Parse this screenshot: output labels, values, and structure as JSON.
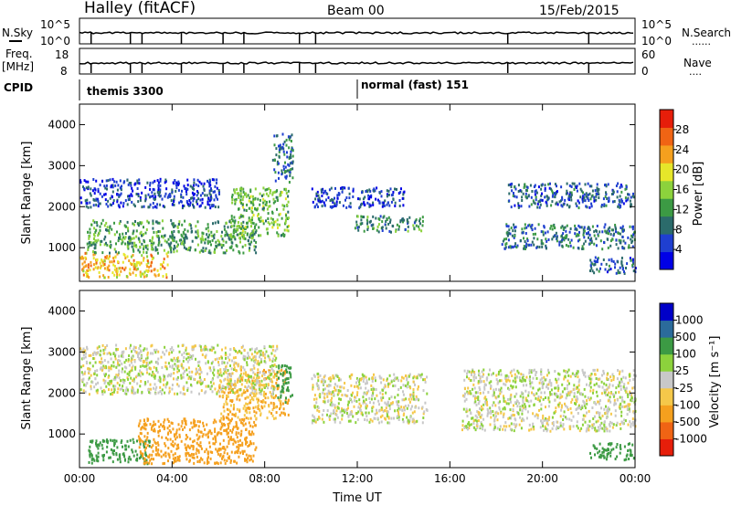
{
  "header": {
    "station": "Halley (fitACF)",
    "beam": "Beam 00",
    "date": "15/Feb/2015"
  },
  "noise_panel": {
    "left_label": "N.Sky",
    "right_label": "N.Search",
    "y_ticks": [
      "10^5",
      "10^0"
    ],
    "right_ticks": [
      "10^5",
      "10^0"
    ],
    "line_style_hint": "......"
  },
  "freq_panel": {
    "left_label": "Freq.",
    "left_unit": "[MHz]",
    "right_label": "Nave",
    "y_ticks": [
      "18",
      "8"
    ],
    "right_ticks": [
      "60",
      "0"
    ],
    "line_style_hint": "...."
  },
  "cpid": {
    "label": "CPID",
    "segments": [
      {
        "text": "themis 3300",
        "start_hour": 0.4
      },
      {
        "text": "normal (fast) 151",
        "start_hour": 12.0
      }
    ]
  },
  "chart_data": [
    {
      "type": "heatmap",
      "quantity": "power",
      "ylabel": "Slant Range [km]",
      "xlabel": "",
      "xlim_hours": [
        0,
        24
      ],
      "x_ticks": [
        "00:00",
        "04:00",
        "08:00",
        "12:00",
        "16:00",
        "20:00",
        "00:00"
      ],
      "ylim": [
        180,
        4500
      ],
      "y_ticks": [
        1000,
        2000,
        3000,
        4000
      ],
      "colorbar": {
        "label": "Power [dB]",
        "ticks": [
          "28",
          "24",
          "20",
          "16",
          "12",
          "8",
          "4"
        ],
        "colors": [
          "#0000e6",
          "#1f3fd0",
          "#2b6b6b",
          "#3c9a44",
          "#8cd23c",
          "#e6e62a",
          "#f5a01e",
          "#f06414",
          "#e61e0a"
        ]
      },
      "echo_regions": [
        {
          "t0": 0.0,
          "t1": 3.8,
          "r0": 300,
          "r1": 900,
          "value": 24
        },
        {
          "t0": 0.3,
          "t1": 7.6,
          "r0": 900,
          "r1": 1700,
          "value": 14
        },
        {
          "t0": 0.0,
          "t1": 6.0,
          "r0": 2000,
          "r1": 2700,
          "value": 6
        },
        {
          "t0": 6.5,
          "t1": 9.0,
          "r0": 1300,
          "r1": 2500,
          "value": 16
        },
        {
          "t0": 8.3,
          "t1": 9.2,
          "r0": 2600,
          "r1": 3800,
          "value": 10
        },
        {
          "t0": 11.8,
          "t1": 14.8,
          "r0": 1400,
          "r1": 1800,
          "value": 12
        },
        {
          "t0": 10.0,
          "t1": 14.0,
          "r0": 2000,
          "r1": 2500,
          "value": 6
        },
        {
          "t0": 18.2,
          "t1": 24.0,
          "r0": 1000,
          "r1": 1600,
          "value": 10
        },
        {
          "t0": 18.5,
          "t1": 24.0,
          "r0": 2000,
          "r1": 2600,
          "value": 8
        },
        {
          "t0": 22.0,
          "t1": 24.0,
          "r0": 400,
          "r1": 800,
          "value": 8
        }
      ]
    },
    {
      "type": "heatmap",
      "quantity": "velocity",
      "ylabel": "Slant Range [km]",
      "xlabel": "Time UT",
      "xlim_hours": [
        0,
        24
      ],
      "x_ticks": [
        "00:00",
        "04:00",
        "08:00",
        "12:00",
        "16:00",
        "20:00",
        "00:00"
      ],
      "ylim": [
        180,
        4500
      ],
      "y_ticks": [
        1000,
        2000,
        3000,
        4000
      ],
      "colorbar": {
        "label": "Velocity [m s⁻¹]",
        "ticks": [
          "1000",
          "500",
          "100",
          "25",
          "-25",
          "-100",
          "-500",
          "-1000"
        ],
        "colors": [
          "#e61e0a",
          "#f06414",
          "#f5a01e",
          "#f5c84a",
          "#c8c8c8",
          "#8cd23c",
          "#3c9a44",
          "#2b6b9b",
          "#0000c8"
        ]
      },
      "echo_regions": [
        {
          "t0": 0.3,
          "t1": 3.0,
          "r0": 300,
          "r1": 900,
          "value": -300
        },
        {
          "t0": 2.5,
          "t1": 7.6,
          "r0": 300,
          "r1": 1400,
          "value": 300
        },
        {
          "t0": 6.0,
          "t1": 9.0,
          "r0": 1400,
          "r1": 2600,
          "value": 100
        },
        {
          "t0": 8.5,
          "t1": 9.2,
          "r0": 1800,
          "r1": 2700,
          "value": -300
        },
        {
          "t0": 0.0,
          "t1": 8.5,
          "r0": 2000,
          "r1": 3200,
          "value": 0
        },
        {
          "t0": 10.0,
          "t1": 15.0,
          "r0": 1300,
          "r1": 2500,
          "value": 0
        },
        {
          "t0": 16.5,
          "t1": 24.0,
          "r0": 1100,
          "r1": 2600,
          "value": 0
        },
        {
          "t0": 22.0,
          "t1": 24.0,
          "r0": 400,
          "r1": 800,
          "value": -200
        }
      ]
    }
  ]
}
